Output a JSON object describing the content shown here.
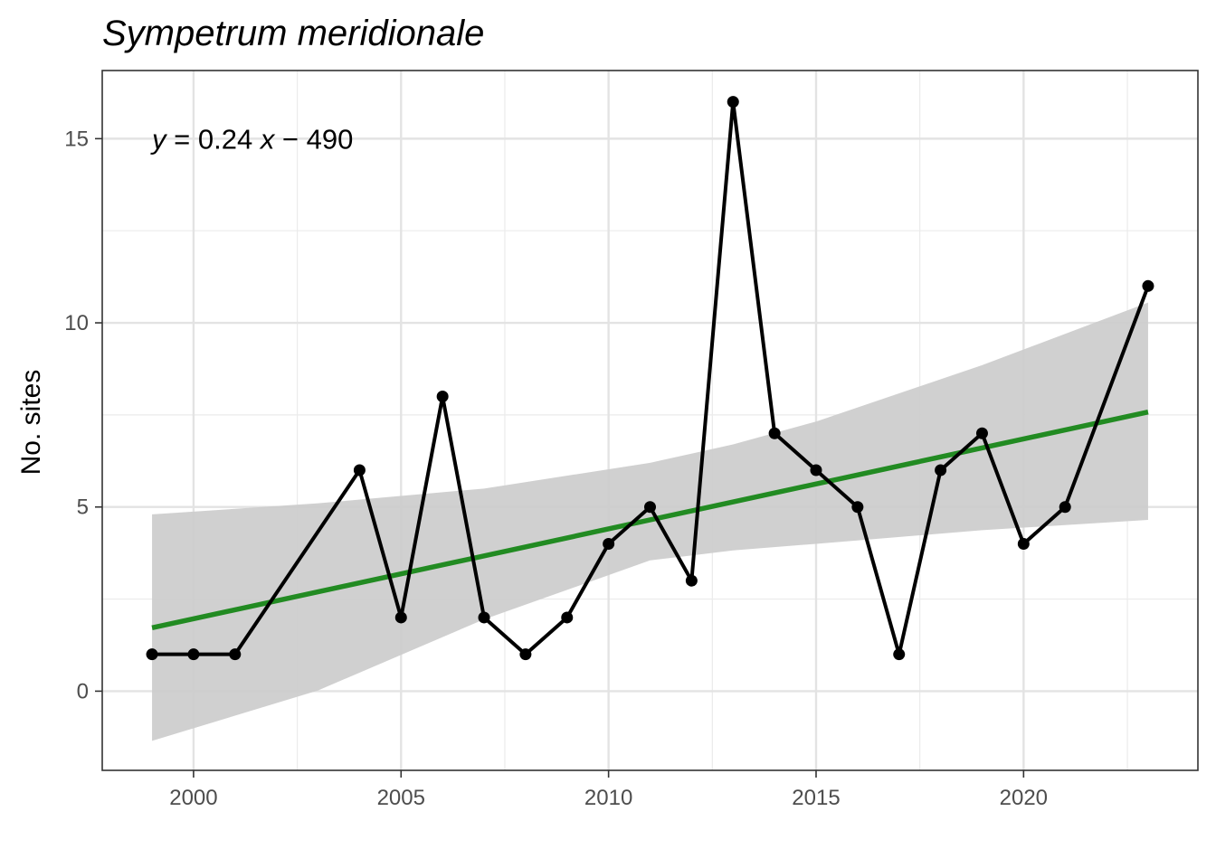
{
  "chart_data": {
    "type": "line",
    "title": "Sympetrum meridionale",
    "xlabel": "",
    "ylabel": "No. sites",
    "xlim": [
      1997.8,
      2024.2
    ],
    "ylim": [
      -2.15,
      16.85
    ],
    "x_ticks": [
      2000,
      2005,
      2010,
      2015,
      2020
    ],
    "x_tick_labels": [
      "2000",
      "2005",
      "2010",
      "2015",
      "2020"
    ],
    "y_ticks": [
      0,
      5,
      10,
      15
    ],
    "y_tick_labels": [
      "0",
      "5",
      "10",
      "15"
    ],
    "grid": true,
    "series": [
      {
        "x": [
          1999,
          2000,
          2001,
          2004,
          2005,
          2006,
          2007,
          2008,
          2009,
          2010,
          2011,
          2012,
          2013,
          2014,
          2015,
          2016,
          2017,
          2018,
          2019,
          2020,
          2021,
          2023
        ],
        "y": [
          1,
          1,
          1,
          6,
          2,
          8,
          2,
          1,
          2,
          4,
          5,
          3,
          16,
          7,
          6,
          5,
          1,
          6,
          7,
          4,
          5,
          11
        ],
        "color": "#000000"
      }
    ],
    "trend": {
      "x": [
        1999,
        2023
      ],
      "y": [
        1.72,
        7.58
      ],
      "color": "#228b22"
    },
    "confidence_band": {
      "x": [
        1999,
        2003,
        2007,
        2011,
        2013,
        2015,
        2019,
        2023
      ],
      "lower": [
        -1.35,
        0.02,
        1.95,
        3.55,
        3.82,
        4.0,
        4.37,
        4.65
      ],
      "upper": [
        4.8,
        5.1,
        5.5,
        6.2,
        6.7,
        7.32,
        8.85,
        10.55
      ],
      "color": "#cccccc"
    },
    "annotation": {
      "text_parts": [
        "y",
        " = 0.24 ",
        "x",
        " − 490"
      ],
      "anchor_x": 1999,
      "anchor_y": 15
    }
  }
}
